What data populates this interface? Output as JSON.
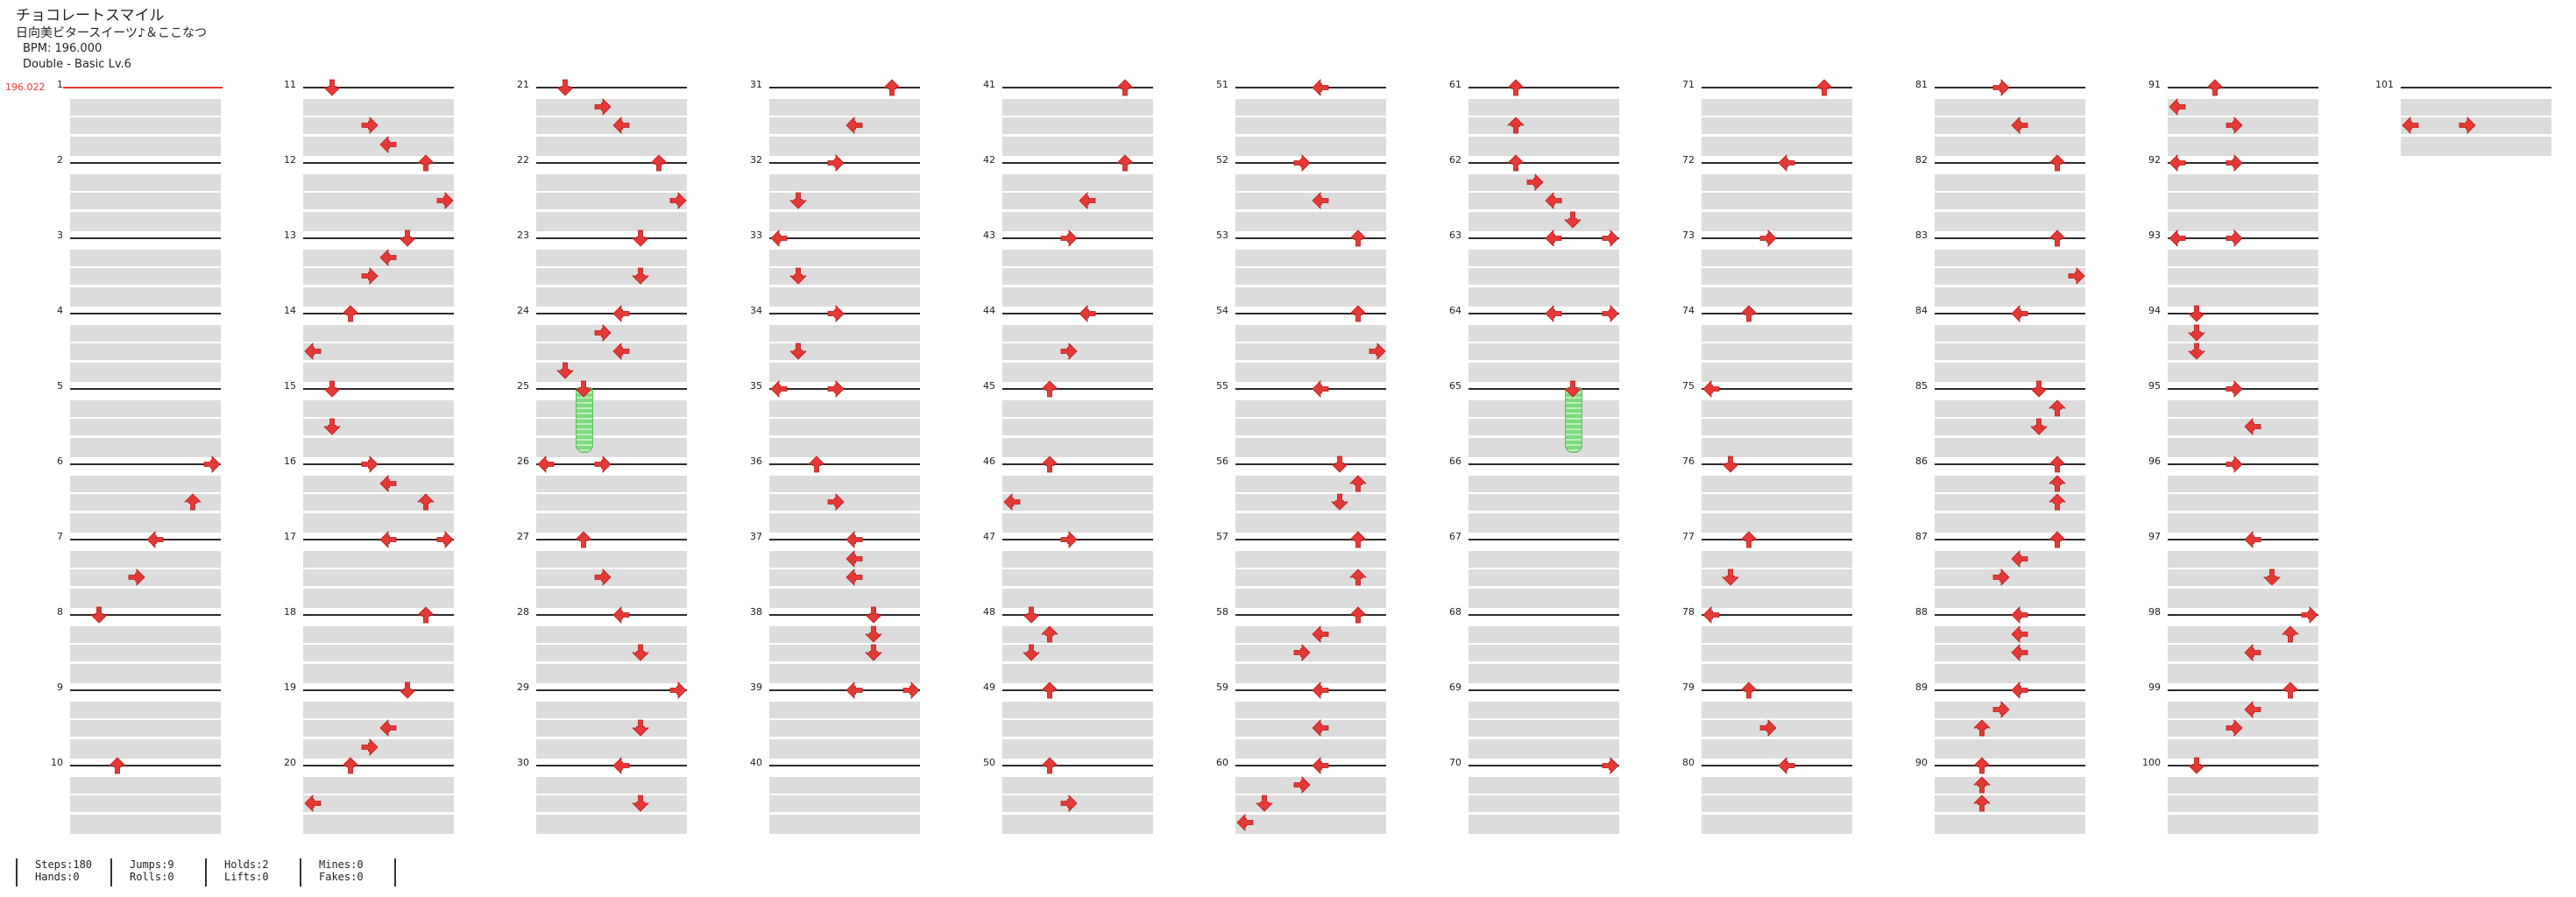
{
  "header": {
    "title": "チョコレートスマイル",
    "artist": "日向美ビタースイーツ♪＆ここなつ",
    "bpm": "BPM: 196.000",
    "difficulty": "Double - Basic  Lv.6"
  },
  "bpm_change": {
    "label": "196.022"
  },
  "colors": {
    "arrow": "#e53935",
    "hold": "#7ed97e",
    "lane": "#dcdcdc",
    "bpm": "#e53935"
  },
  "columns": [
    {
      "measures": [
        1,
        2,
        3,
        4,
        5,
        6,
        7,
        8,
        9,
        10
      ]
    },
    {
      "measures": [
        11,
        12,
        13,
        14,
        15,
        16,
        17,
        18,
        19,
        20
      ]
    },
    {
      "measures": [
        21,
        22,
        23,
        24,
        25,
        26,
        27,
        28,
        29,
        30
      ]
    },
    {
      "measures": [
        31,
        32,
        33,
        34,
        35,
        36,
        37,
        38,
        39,
        40
      ]
    },
    {
      "measures": [
        41,
        42,
        43,
        44,
        45,
        46,
        47,
        48,
        49,
        50
      ]
    },
    {
      "measures": [
        51,
        52,
        53,
        54,
        55,
        56,
        57,
        58,
        59,
        60
      ]
    },
    {
      "measures": [
        61,
        62,
        63,
        64,
        65,
        66,
        67,
        68,
        69,
        70
      ]
    },
    {
      "measures": [
        71,
        72,
        73,
        74,
        75,
        76,
        77,
        78,
        79,
        80
      ]
    },
    {
      "measures": [
        81,
        82,
        83,
        84,
        85,
        86,
        87,
        88,
        89,
        90
      ]
    },
    {
      "measures": [
        91,
        92,
        93,
        94,
        95,
        96,
        97,
        98,
        99,
        100
      ]
    },
    {
      "measures": [
        101
      ]
    }
  ],
  "notes": [
    {
      "m": 6,
      "b": 0,
      "lane": 7,
      "dir": "right"
    },
    {
      "m": 6,
      "b": 2,
      "lane": 6,
      "dir": "up"
    },
    {
      "m": 7,
      "b": 0,
      "lane": 4,
      "dir": "left"
    },
    {
      "m": 7,
      "b": 2,
      "lane": 3,
      "dir": "right"
    },
    {
      "m": 8,
      "b": 0,
      "lane": 1,
      "dir": "down"
    },
    {
      "m": 10,
      "b": 0,
      "lane": 2,
      "dir": "up"
    },
    {
      "m": 11,
      "b": 0,
      "lane": 1,
      "dir": "down"
    },
    {
      "m": 11,
      "b": 2,
      "lane": 3,
      "dir": "right"
    },
    {
      "m": 11,
      "b": 3,
      "lane": 4,
      "dir": "left"
    },
    {
      "m": 12,
      "b": 0,
      "lane": 6,
      "dir": "up"
    },
    {
      "m": 12,
      "b": 2,
      "lane": 7,
      "dir": "right"
    },
    {
      "m": 13,
      "b": 0,
      "lane": 5,
      "dir": "down"
    },
    {
      "m": 13,
      "b": 1,
      "lane": 4,
      "dir": "left"
    },
    {
      "m": 13,
      "b": 2,
      "lane": 3,
      "dir": "right"
    },
    {
      "m": 14,
      "b": 0,
      "lane": 2,
      "dir": "up"
    },
    {
      "m": 14,
      "b": 2,
      "lane": 0,
      "dir": "left"
    },
    {
      "m": 15,
      "b": 0,
      "lane": 1,
      "dir": "down"
    },
    {
      "m": 15,
      "b": 2,
      "lane": 1,
      "dir": "down"
    },
    {
      "m": 16,
      "b": 0,
      "lane": 3,
      "dir": "right"
    },
    {
      "m": 16,
      "b": 1,
      "lane": 4,
      "dir": "left"
    },
    {
      "m": 16,
      "b": 2,
      "lane": 6,
      "dir": "up"
    },
    {
      "m": 17,
      "b": 0,
      "lane": 4,
      "dir": "left"
    },
    {
      "m": 17,
      "b": 0,
      "lane": 7,
      "dir": "right"
    },
    {
      "m": 18,
      "b": 0,
      "lane": 6,
      "dir": "up"
    },
    {
      "m": 19,
      "b": 0,
      "lane": 5,
      "dir": "down"
    },
    {
      "m": 19,
      "b": 2,
      "lane": 4,
      "dir": "left"
    },
    {
      "m": 19,
      "b": 3,
      "lane": 3,
      "dir": "right"
    },
    {
      "m": 20,
      "b": 0,
      "lane": 2,
      "dir": "up"
    },
    {
      "m": 20,
      "b": 2,
      "lane": 0,
      "dir": "left"
    },
    {
      "m": 21,
      "b": 0,
      "lane": 1,
      "dir": "down"
    },
    {
      "m": 21,
      "b": 1,
      "lane": 3,
      "dir": "right"
    },
    {
      "m": 21,
      "b": 2,
      "lane": 4,
      "dir": "left"
    },
    {
      "m": 22,
      "b": 0,
      "lane": 6,
      "dir": "up"
    },
    {
      "m": 22,
      "b": 2,
      "lane": 7,
      "dir": "right"
    },
    {
      "m": 23,
      "b": 0,
      "lane": 5,
      "dir": "down"
    },
    {
      "m": 23,
      "b": 2,
      "lane": 5,
      "dir": "down"
    },
    {
      "m": 24,
      "b": 0,
      "lane": 4,
      "dir": "left"
    },
    {
      "m": 24,
      "b": 1,
      "lane": 3,
      "dir": "right"
    },
    {
      "m": 24,
      "b": 2,
      "lane": 4,
      "dir": "left"
    },
    {
      "m": 25,
      "b": -1,
      "lane": 1,
      "dir": "down"
    },
    {
      "m": 25,
      "b": 0,
      "lane": 2,
      "dir": "down"
    },
    {
      "m": 26,
      "b": 0,
      "lane": 0,
      "dir": "left"
    },
    {
      "m": 26,
      "b": 0,
      "lane": 3,
      "dir": "right"
    },
    {
      "m": 27,
      "b": 0,
      "lane": 2,
      "dir": "up"
    },
    {
      "m": 27,
      "b": 2,
      "lane": 3,
      "dir": "right"
    },
    {
      "m": 28,
      "b": 0,
      "lane": 4,
      "dir": "left"
    },
    {
      "m": 28,
      "b": 2,
      "lane": 5,
      "dir": "down"
    },
    {
      "m": 29,
      "b": 0,
      "lane": 7,
      "dir": "right"
    },
    {
      "m": 29,
      "b": 2,
      "lane": 5,
      "dir": "down"
    },
    {
      "m": 30,
      "b": 0,
      "lane": 4,
      "dir": "left"
    },
    {
      "m": 30,
      "b": 2,
      "lane": 5,
      "dir": "down"
    },
    {
      "m": 31,
      "b": 0,
      "lane": 6,
      "dir": "up"
    },
    {
      "m": 31,
      "b": 2,
      "lane": 4,
      "dir": "left"
    },
    {
      "m": 32,
      "b": 0,
      "lane": 3,
      "dir": "right"
    },
    {
      "m": 32,
      "b": 2,
      "lane": 1,
      "dir": "down"
    },
    {
      "m": 33,
      "b": 0,
      "lane": 0,
      "dir": "left"
    },
    {
      "m": 33,
      "b": 2,
      "lane": 1,
      "dir": "down"
    },
    {
      "m": 34,
      "b": 0,
      "lane": 3,
      "dir": "right"
    },
    {
      "m": 34,
      "b": 2,
      "lane": 1,
      "dir": "down"
    },
    {
      "m": 35,
      "b": 0,
      "lane": 0,
      "dir": "left"
    },
    {
      "m": 35,
      "b": 0,
      "lane": 3,
      "dir": "right"
    },
    {
      "m": 36,
      "b": 0,
      "lane": 2,
      "dir": "up"
    },
    {
      "m": 36,
      "b": 2,
      "lane": 3,
      "dir": "right"
    },
    {
      "m": 37,
      "b": 0,
      "lane": 4,
      "dir": "left"
    },
    {
      "m": 37,
      "b": 1,
      "lane": 4,
      "dir": "left"
    },
    {
      "m": 37,
      "b": 2,
      "lane": 4,
      "dir": "left"
    },
    {
      "m": 38,
      "b": 0,
      "lane": 5,
      "dir": "down"
    },
    {
      "m": 38,
      "b": 1,
      "lane": 5,
      "dir": "down"
    },
    {
      "m": 38,
      "b": 2,
      "lane": 5,
      "dir": "down"
    },
    {
      "m": 39,
      "b": 0,
      "lane": 4,
      "dir": "left"
    },
    {
      "m": 39,
      "b": 0,
      "lane": 7,
      "dir": "right"
    },
    {
      "m": 41,
      "b": 0,
      "lane": 6,
      "dir": "up"
    },
    {
      "m": 42,
      "b": 0,
      "lane": 6,
      "dir": "up"
    },
    {
      "m": 42,
      "b": 2,
      "lane": 4,
      "dir": "left"
    },
    {
      "m": 43,
      "b": 0,
      "lane": 3,
      "dir": "right"
    },
    {
      "m": 44,
      "b": 0,
      "lane": 4,
      "dir": "left"
    },
    {
      "m": 44,
      "b": 2,
      "lane": 3,
      "dir": "right"
    },
    {
      "m": 45,
      "b": 0,
      "lane": 2,
      "dir": "up"
    },
    {
      "m": 46,
      "b": 0,
      "lane": 2,
      "dir": "up"
    },
    {
      "m": 46,
      "b": 2,
      "lane": 0,
      "dir": "left"
    },
    {
      "m": 47,
      "b": 0,
      "lane": 3,
      "dir": "right"
    },
    {
      "m": 48,
      "b": 0,
      "lane": 1,
      "dir": "down"
    },
    {
      "m": 48,
      "b": 1,
      "lane": 2,
      "dir": "up"
    },
    {
      "m": 48,
      "b": 2,
      "lane": 1,
      "dir": "down"
    },
    {
      "m": 49,
      "b": 0,
      "lane": 2,
      "dir": "up"
    },
    {
      "m": 50,
      "b": 0,
      "lane": 2,
      "dir": "up"
    },
    {
      "m": 50,
      "b": 2,
      "lane": 3,
      "dir": "right"
    },
    {
      "m": 51,
      "b": 0,
      "lane": 4,
      "dir": "left"
    },
    {
      "m": 52,
      "b": 0,
      "lane": 3,
      "dir": "right"
    },
    {
      "m": 52,
      "b": 2,
      "lane": 4,
      "dir": "left"
    },
    {
      "m": 53,
      "b": 0,
      "lane": 6,
      "dir": "up"
    },
    {
      "m": 54,
      "b": 0,
      "lane": 6,
      "dir": "up"
    },
    {
      "m": 54,
      "b": 2,
      "lane": 7,
      "dir": "right"
    },
    {
      "m": 55,
      "b": 0,
      "lane": 4,
      "dir": "left"
    },
    {
      "m": 56,
      "b": 0,
      "lane": 5,
      "dir": "down"
    },
    {
      "m": 56,
      "b": 1,
      "lane": 6,
      "dir": "up"
    },
    {
      "m": 56,
      "b": 2,
      "lane": 5,
      "dir": "down"
    },
    {
      "m": 57,
      "b": 0,
      "lane": 6,
      "dir": "up"
    },
    {
      "m": 57,
      "b": 2,
      "lane": 6,
      "dir": "up"
    },
    {
      "m": 58,
      "b": 0,
      "lane": 6,
      "dir": "up"
    },
    {
      "m": 58,
      "b": 1,
      "lane": 4,
      "dir": "left"
    },
    {
      "m": 58,
      "b": 2,
      "lane": 3,
      "dir": "right"
    },
    {
      "m": 59,
      "b": 0,
      "lane": 4,
      "dir": "left"
    },
    {
      "m": 59,
      "b": 2,
      "lane": 4,
      "dir": "left"
    },
    {
      "m": 60,
      "b": 0,
      "lane": 4,
      "dir": "left"
    },
    {
      "m": 60,
      "b": 1,
      "lane": 3,
      "dir": "right"
    },
    {
      "m": 60,
      "b": 2,
      "lane": 1,
      "dir": "down"
    },
    {
      "m": 60,
      "b": 3,
      "lane": 0,
      "dir": "left"
    },
    {
      "m": 61,
      "b": 0,
      "lane": 2,
      "dir": "up"
    },
    {
      "m": 61,
      "b": 2,
      "lane": 2,
      "dir": "up"
    },
    {
      "m": 62,
      "b": 0,
      "lane": 2,
      "dir": "up"
    },
    {
      "m": 62,
      "b": 1,
      "lane": 3,
      "dir": "right"
    },
    {
      "m": 62,
      "b": 2,
      "lane": 4,
      "dir": "left"
    },
    {
      "m": 62,
      "b": 3,
      "lane": 5,
      "dir": "down"
    },
    {
      "m": 63,
      "b": 0,
      "lane": 4,
      "dir": "left"
    },
    {
      "m": 63,
      "b": 0,
      "lane": 7,
      "dir": "right"
    },
    {
      "m": 64,
      "b": 0,
      "lane": 4,
      "dir": "left"
    },
    {
      "m": 64,
      "b": 0,
      "lane": 7,
      "dir": "right"
    },
    {
      "m": 65,
      "b": 0,
      "lane": 5,
      "dir": "down"
    },
    {
      "m": 70,
      "b": 0,
      "lane": 7,
      "dir": "right"
    },
    {
      "m": 71,
      "b": 0,
      "lane": 6,
      "dir": "up"
    },
    {
      "m": 72,
      "b": 0,
      "lane": 4,
      "dir": "left"
    },
    {
      "m": 73,
      "b": 0,
      "lane": 3,
      "dir": "right"
    },
    {
      "m": 74,
      "b": 0,
      "lane": 2,
      "dir": "up"
    },
    {
      "m": 75,
      "b": 0,
      "lane": 0,
      "dir": "left"
    },
    {
      "m": 76,
      "b": 0,
      "lane": 1,
      "dir": "down"
    },
    {
      "m": 77,
      "b": 0,
      "lane": 2,
      "dir": "up"
    },
    {
      "m": 77,
      "b": 2,
      "lane": 1,
      "dir": "down"
    },
    {
      "m": 78,
      "b": 0,
      "lane": 0,
      "dir": "left"
    },
    {
      "m": 79,
      "b": 0,
      "lane": 2,
      "dir": "up"
    },
    {
      "m": 79,
      "b": 2,
      "lane": 3,
      "dir": "right"
    },
    {
      "m": 80,
      "b": 0,
      "lane": 4,
      "dir": "left"
    },
    {
      "m": 81,
      "b": 0,
      "lane": 3,
      "dir": "right"
    },
    {
      "m": 81,
      "b": 2,
      "lane": 4,
      "dir": "left"
    },
    {
      "m": 82,
      "b": 0,
      "lane": 6,
      "dir": "up"
    },
    {
      "m": 83,
      "b": 0,
      "lane": 6,
      "dir": "up"
    },
    {
      "m": 83,
      "b": 2,
      "lane": 7,
      "dir": "right"
    },
    {
      "m": 84,
      "b": 0,
      "lane": 4,
      "dir": "left"
    },
    {
      "m": 85,
      "b": 0,
      "lane": 5,
      "dir": "down"
    },
    {
      "m": 85,
      "b": 1,
      "lane": 6,
      "dir": "up"
    },
    {
      "m": 85,
      "b": 2,
      "lane": 5,
      "dir": "down"
    },
    {
      "m": 86,
      "b": 0,
      "lane": 6,
      "dir": "up"
    },
    {
      "m": 86,
      "b": 1,
      "lane": 6,
      "dir": "up"
    },
    {
      "m": 86,
      "b": 2,
      "lane": 6,
      "dir": "up"
    },
    {
      "m": 87,
      "b": 0,
      "lane": 6,
      "dir": "up"
    },
    {
      "m": 87,
      "b": 1,
      "lane": 4,
      "dir": "left"
    },
    {
      "m": 87,
      "b": 2,
      "lane": 3,
      "dir": "right"
    },
    {
      "m": 88,
      "b": 0,
      "lane": 4,
      "dir": "left"
    },
    {
      "m": 88,
      "b": 1,
      "lane": 4,
      "dir": "left"
    },
    {
      "m": 88,
      "b": 2,
      "lane": 4,
      "dir": "left"
    },
    {
      "m": 89,
      "b": 0,
      "lane": 4,
      "dir": "left"
    },
    {
      "m": 89,
      "b": 1,
      "lane": 3,
      "dir": "right"
    },
    {
      "m": 89,
      "b": 2,
      "lane": 2,
      "dir": "up"
    },
    {
      "m": 90,
      "b": 0,
      "lane": 2,
      "dir": "up"
    },
    {
      "m": 90,
      "b": 1,
      "lane": 2,
      "dir": "up"
    },
    {
      "m": 90,
      "b": 2,
      "lane": 2,
      "dir": "up"
    },
    {
      "m": 91,
      "b": 0,
      "lane": 2,
      "dir": "up"
    },
    {
      "m": 91,
      "b": 1,
      "lane": 0,
      "dir": "left"
    },
    {
      "m": 91,
      "b": 2,
      "lane": 3,
      "dir": "right"
    },
    {
      "m": 92,
      "b": 0,
      "lane": 0,
      "dir": "left"
    },
    {
      "m": 92,
      "b": 0,
      "lane": 3,
      "dir": "right"
    },
    {
      "m": 93,
      "b": 0,
      "lane": 0,
      "dir": "left"
    },
    {
      "m": 93,
      "b": 0,
      "lane": 3,
      "dir": "right"
    },
    {
      "m": 94,
      "b": 0,
      "lane": 1,
      "dir": "down"
    },
    {
      "m": 94,
      "b": 1,
      "lane": 1,
      "dir": "down"
    },
    {
      "m": 94,
      "b": 2,
      "lane": 1,
      "dir": "down"
    },
    {
      "m": 95,
      "b": 0,
      "lane": 3,
      "dir": "right"
    },
    {
      "m": 95,
      "b": 2,
      "lane": 4,
      "dir": "left"
    },
    {
      "m": 96,
      "b": 0,
      "lane": 3,
      "dir": "right"
    },
    {
      "m": 97,
      "b": 0,
      "lane": 4,
      "dir": "left"
    },
    {
      "m": 97,
      "b": 2,
      "lane": 5,
      "dir": "down"
    },
    {
      "m": 98,
      "b": 0,
      "lane": 7,
      "dir": "right"
    },
    {
      "m": 98,
      "b": 1,
      "lane": 6,
      "dir": "up"
    },
    {
      "m": 98,
      "b": 2,
      "lane": 4,
      "dir": "left"
    },
    {
      "m": 99,
      "b": 0,
      "lane": 6,
      "dir": "up"
    },
    {
      "m": 99,
      "b": 1,
      "lane": 4,
      "dir": "left"
    },
    {
      "m": 99,
      "b": 2,
      "lane": 3,
      "dir": "right"
    },
    {
      "m": 100,
      "b": 0,
      "lane": 1,
      "dir": "down"
    },
    {
      "m": 101,
      "b": 2,
      "lane": 0,
      "dir": "left"
    },
    {
      "m": 101,
      "b": 2,
      "lane": 3,
      "dir": "right"
    }
  ],
  "holds": [
    {
      "m": 25,
      "lane": 2,
      "beats": 3
    },
    {
      "m": 65,
      "lane": 5,
      "beats": 3
    }
  ],
  "stats": [
    {
      "a": "Steps:180",
      "b": "Hands:0"
    },
    {
      "a": "Jumps:9",
      "b": "Rolls:0"
    },
    {
      "a": "Holds:2",
      "b": "Lifts:0"
    },
    {
      "a": "Mines:0",
      "b": "Fakes:0"
    }
  ]
}
